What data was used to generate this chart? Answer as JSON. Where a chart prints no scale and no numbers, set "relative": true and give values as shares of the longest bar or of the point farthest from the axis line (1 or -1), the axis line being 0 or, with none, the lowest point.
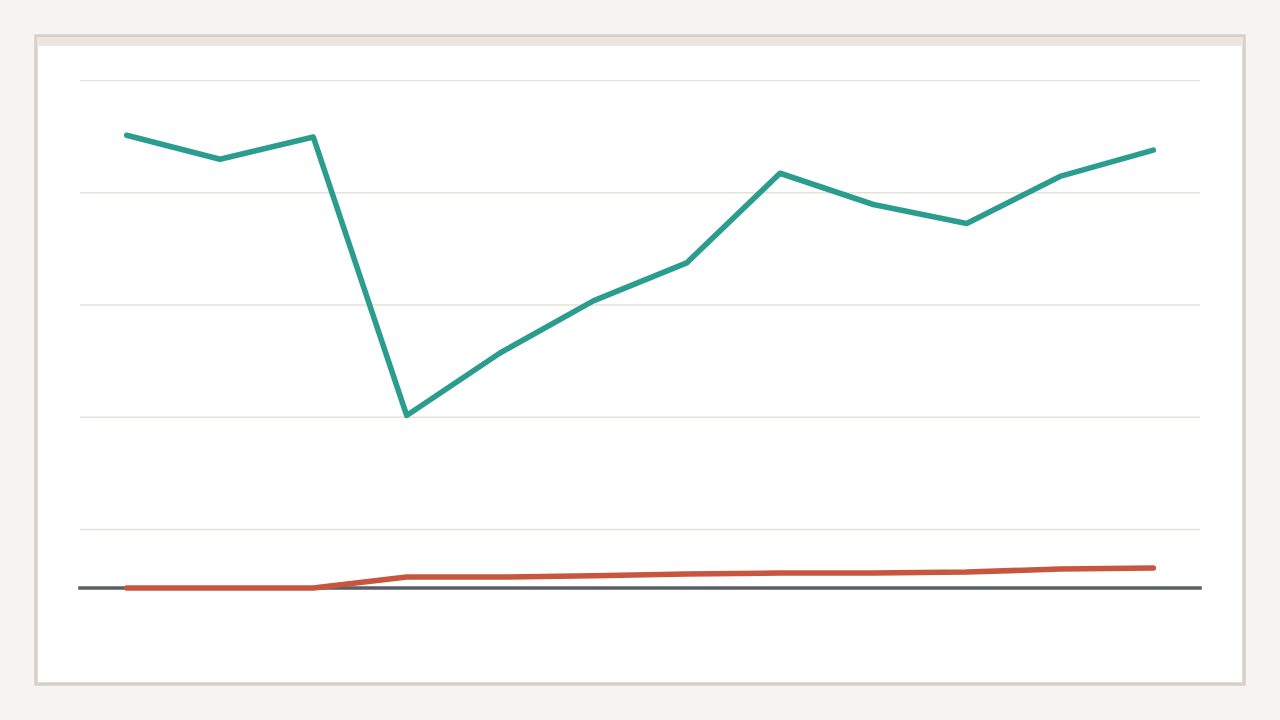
{
  "chart_data": {
    "type": "line",
    "relative": true,
    "grid": "y",
    "tick_labels": false,
    "categories": [
      null,
      null,
      null,
      null,
      null,
      null,
      null,
      null,
      null,
      null,
      null,
      null
    ],
    "series": [
      {
        "color": "#2a9d8f",
        "values": [
          1,
          0.947,
          0.996,
          0.381,
          0.519,
          0.634,
          0.718,
          0.916,
          0.847,
          0.805,
          0.909,
          0.967
        ]
      },
      {
        "color": "#c8553d",
        "values": [
          0,
          0,
          0,
          0.024,
          0.024,
          0.027,
          0.031,
          0.033,
          0.033,
          0.035,
          0.042,
          0.044
        ]
      }
    ]
  }
}
